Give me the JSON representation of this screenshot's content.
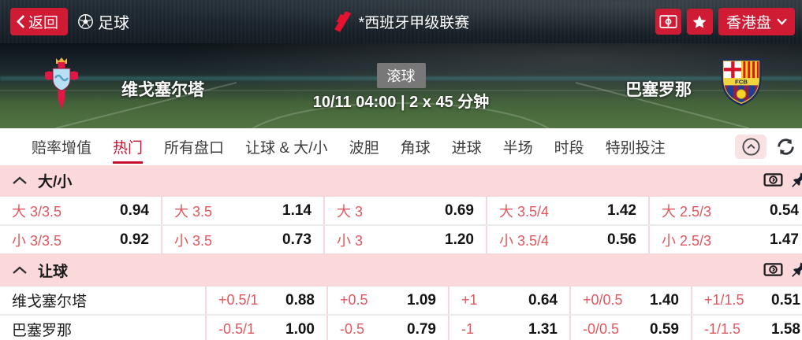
{
  "topbar": {
    "back_label": "返回",
    "sport_label": "足球",
    "league_label": "*西班牙甲级联赛",
    "odds_type_label": "香港盘"
  },
  "match": {
    "home_team": "维戈塞尔塔",
    "away_team": "巴塞罗那",
    "live_badge": "滚球",
    "kickoff_info": "10/11 04:00 | 2 x 45 分钟"
  },
  "tabs": {
    "items": [
      "赔率增值",
      "热门",
      "所有盘口",
      "让球 & 大/小",
      "波胆",
      "角球",
      "进球",
      "半场",
      "时段",
      "特别投注"
    ],
    "active_index": 1
  },
  "sections": [
    {
      "title": "大/小",
      "layout": "ou",
      "rows": [
        {
          "cells": [
            {
              "label": "大 3/3.5",
              "odds": "0.94"
            },
            {
              "label": "大 3.5",
              "odds": "1.14"
            },
            {
              "label": "大 3",
              "odds": "0.69"
            },
            {
              "label": "大 3.5/4",
              "odds": "1.42"
            },
            {
              "label": "大 2.5/3",
              "odds": "0.54"
            }
          ]
        },
        {
          "cells": [
            {
              "label": "小 3/3.5",
              "odds": "0.92"
            },
            {
              "label": "小 3.5",
              "odds": "0.73"
            },
            {
              "label": "小 3",
              "odds": "1.20"
            },
            {
              "label": "小 3.5/4",
              "odds": "0.56"
            },
            {
              "label": "小 2.5/3",
              "odds": "1.47"
            }
          ]
        }
      ]
    },
    {
      "title": "让球",
      "layout": "handicap",
      "rows": [
        {
          "team": "维戈塞尔塔",
          "cells": [
            {
              "label": "+0.5/1",
              "odds": "0.88"
            },
            {
              "label": "+0.5",
              "odds": "1.09"
            },
            {
              "label": "+1",
              "odds": "0.64"
            },
            {
              "label": "+0/0.5",
              "odds": "1.40"
            },
            {
              "label": "+1/1.5",
              "odds": "0.51"
            }
          ]
        },
        {
          "team": "巴塞罗那",
          "cells": [
            {
              "label": "-0.5/1",
              "odds": "1.00"
            },
            {
              "label": "-0.5",
              "odds": "0.79"
            },
            {
              "label": "-1",
              "odds": "1.31"
            },
            {
              "label": "-0/0.5",
              "odds": "0.59"
            },
            {
              "label": "-1/1.5",
              "odds": "1.58"
            }
          ]
        }
      ]
    }
  ],
  "colors": {
    "accent_red": "#cf1b34",
    "active_tab_red": "#c8102e",
    "section_bg": "#fbd8da",
    "odds_label_red": "#e0575f",
    "odds_value": "#141414",
    "live_badge_bg": "#787878"
  }
}
